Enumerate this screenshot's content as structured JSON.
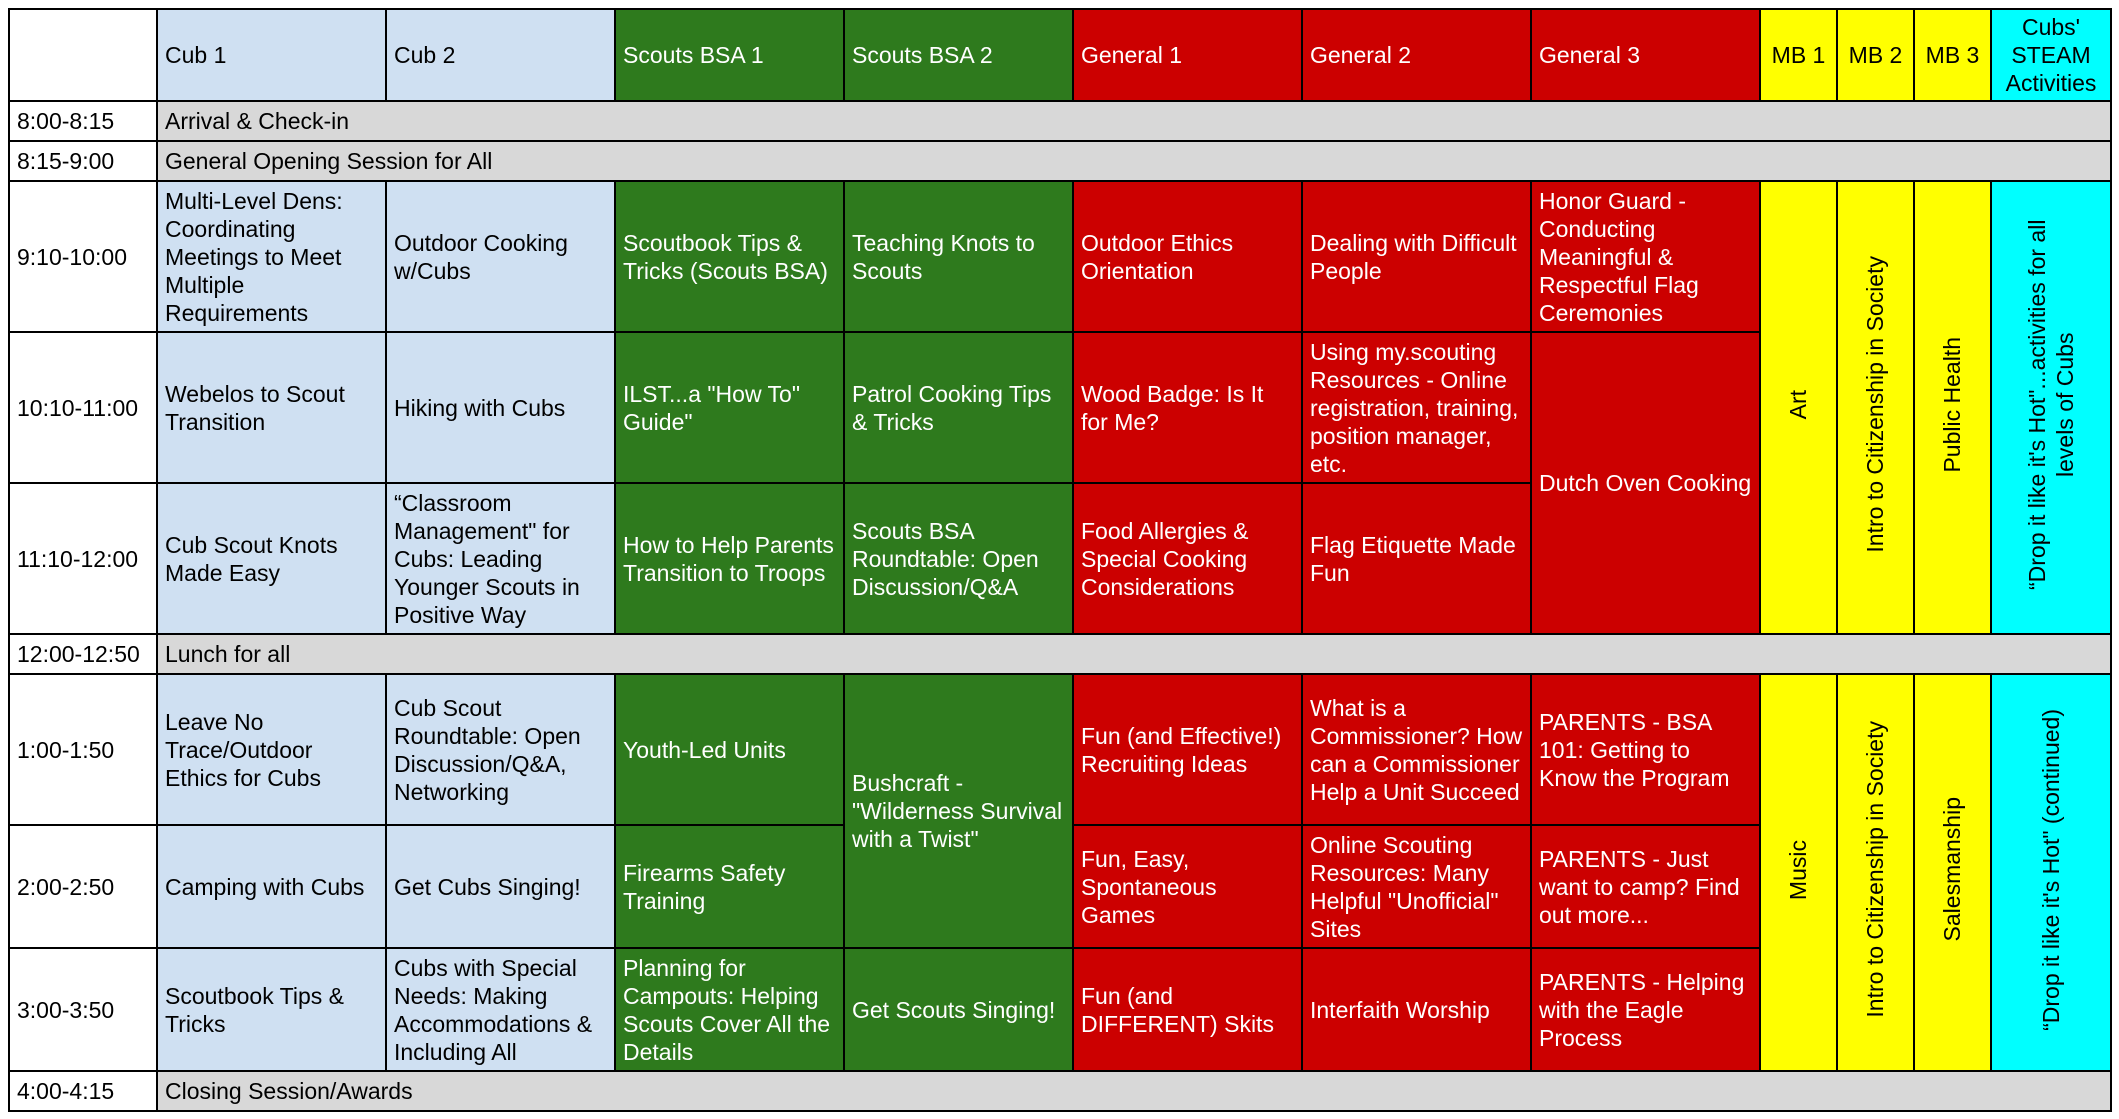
{
  "headers": {
    "time": "",
    "cub1": "Cub 1",
    "cub2": "Cub 2",
    "scouts1": "Scouts BSA 1",
    "scouts2": "Scouts BSA 2",
    "general1": "General 1",
    "general2": "General 2",
    "general3": "General 3",
    "mb1": "MB 1",
    "mb2": "MB 2",
    "mb3": "MB 3",
    "steam": "Cubs' STEAM Activities"
  },
  "rows": {
    "r0815": {
      "time": "8:00-8:15",
      "text": "Arrival & Check-in"
    },
    "r0900": {
      "time": "8:15-9:00",
      "text": "General Opening Session for All"
    },
    "r0910": {
      "time": "9:10-10:00",
      "cub1": "Multi-Level Dens: Coordinating Meetings to Meet Multiple Requirements",
      "cub2": "Outdoor Cooking w/Cubs",
      "scouts1": "Scoutbook Tips & Tricks (Scouts BSA)",
      "scouts2": "Teaching Knots to Scouts",
      "general1": "Outdoor Ethics Orientation",
      "general2": "Dealing with Difficult People",
      "general3": "Honor Guard - Conducting Meaningful & Respectful Flag Ceremonies"
    },
    "r1010": {
      "time": "10:10-11:00",
      "cub1": "Webelos to Scout Transition",
      "cub2": "Hiking with Cubs",
      "scouts1": "ILST...a \"How To\" Guide\"",
      "scouts2": "Patrol Cooking Tips & Tricks",
      "general1": "Wood Badge: Is It for Me?",
      "general2": "Using my.scouting Resources - Online registration, training, position manager, etc."
    },
    "r1110": {
      "time": "11:10-12:00",
      "cub1": "Cub Scout Knots Made Easy",
      "cub2": "“Classroom Management\" for Cubs: Leading Younger Scouts in Positive Way",
      "scouts1": "How to Help Parents Transition to Troops",
      "scouts2": "Scouts BSA Roundtable: Open Discussion/Q&A",
      "general1": "Food Allergies & Special Cooking Considerations",
      "general2": "Flag Etiquette Made Fun"
    },
    "morning_span": {
      "general3": "Dutch Oven Cooking",
      "mb1": "Art",
      "mb2": "Intro to Citizenship in Society",
      "mb3": "Public Health",
      "steam": "“Drop it like it's Hot\"...activities for all levels of Cubs"
    },
    "r1200": {
      "time": "12:00-12:50",
      "text": "Lunch for all"
    },
    "r0100": {
      "time": "1:00-1:50",
      "cub1": "Leave No Trace/Outdoor Ethics for Cubs",
      "cub2": "Cub Scout Roundtable: Open Discussion/Q&A, Networking",
      "scouts1": "Youth-Led Units",
      "general1": "Fun (and Effective!) Recruiting Ideas",
      "general2": "What is a Commissioner? How can a Commissioner Help a Unit Succeed",
      "general3": "PARENTS - BSA 101: Getting to Know the Program"
    },
    "r0200": {
      "time": "2:00-2:50",
      "cub1": "Camping with Cubs",
      "cub2": "Get Cubs Singing!",
      "scouts1": "Firearms Safety Training",
      "general1": "Fun, Easy, Spontaneous Games",
      "general2": "Online Scouting Resources: Many Helpful \"Unofficial\" Sites",
      "general3": "PARENTS - Just want to camp? Find out more..."
    },
    "r0300": {
      "time": "3:00-3:50",
      "cub1": "Scoutbook Tips & Tricks",
      "cub2": "Cubs with Special Needs: Making Accommodations & Including All",
      "scouts1": "Planning for Campouts: Helping Scouts Cover All the Details",
      "scouts2": "Get Scouts Singing!",
      "general1": "Fun (and DIFFERENT) Skits",
      "general2": "Interfaith Worship",
      "general3": "PARENTS - Helping with the Eagle Process"
    },
    "afternoon_span": {
      "scouts2": "Bushcraft - \"Wilderness Survival with a Twist\"",
      "mb1": "Music",
      "mb2": "Intro to Citizenship in Society",
      "mb3": "Salesmanship",
      "steam": "“Drop it like it's Hot\" (continued)"
    },
    "r0400": {
      "time": "4:00-4:15",
      "text": "Closing Session/Awards"
    }
  },
  "colors": {
    "cub": "#cfe0f2",
    "scout": "#2e7a1d",
    "general": "#cc0000",
    "merit_badge": "#ffff00",
    "steam": "#00ffff",
    "full_row": "#d8d8d8"
  }
}
